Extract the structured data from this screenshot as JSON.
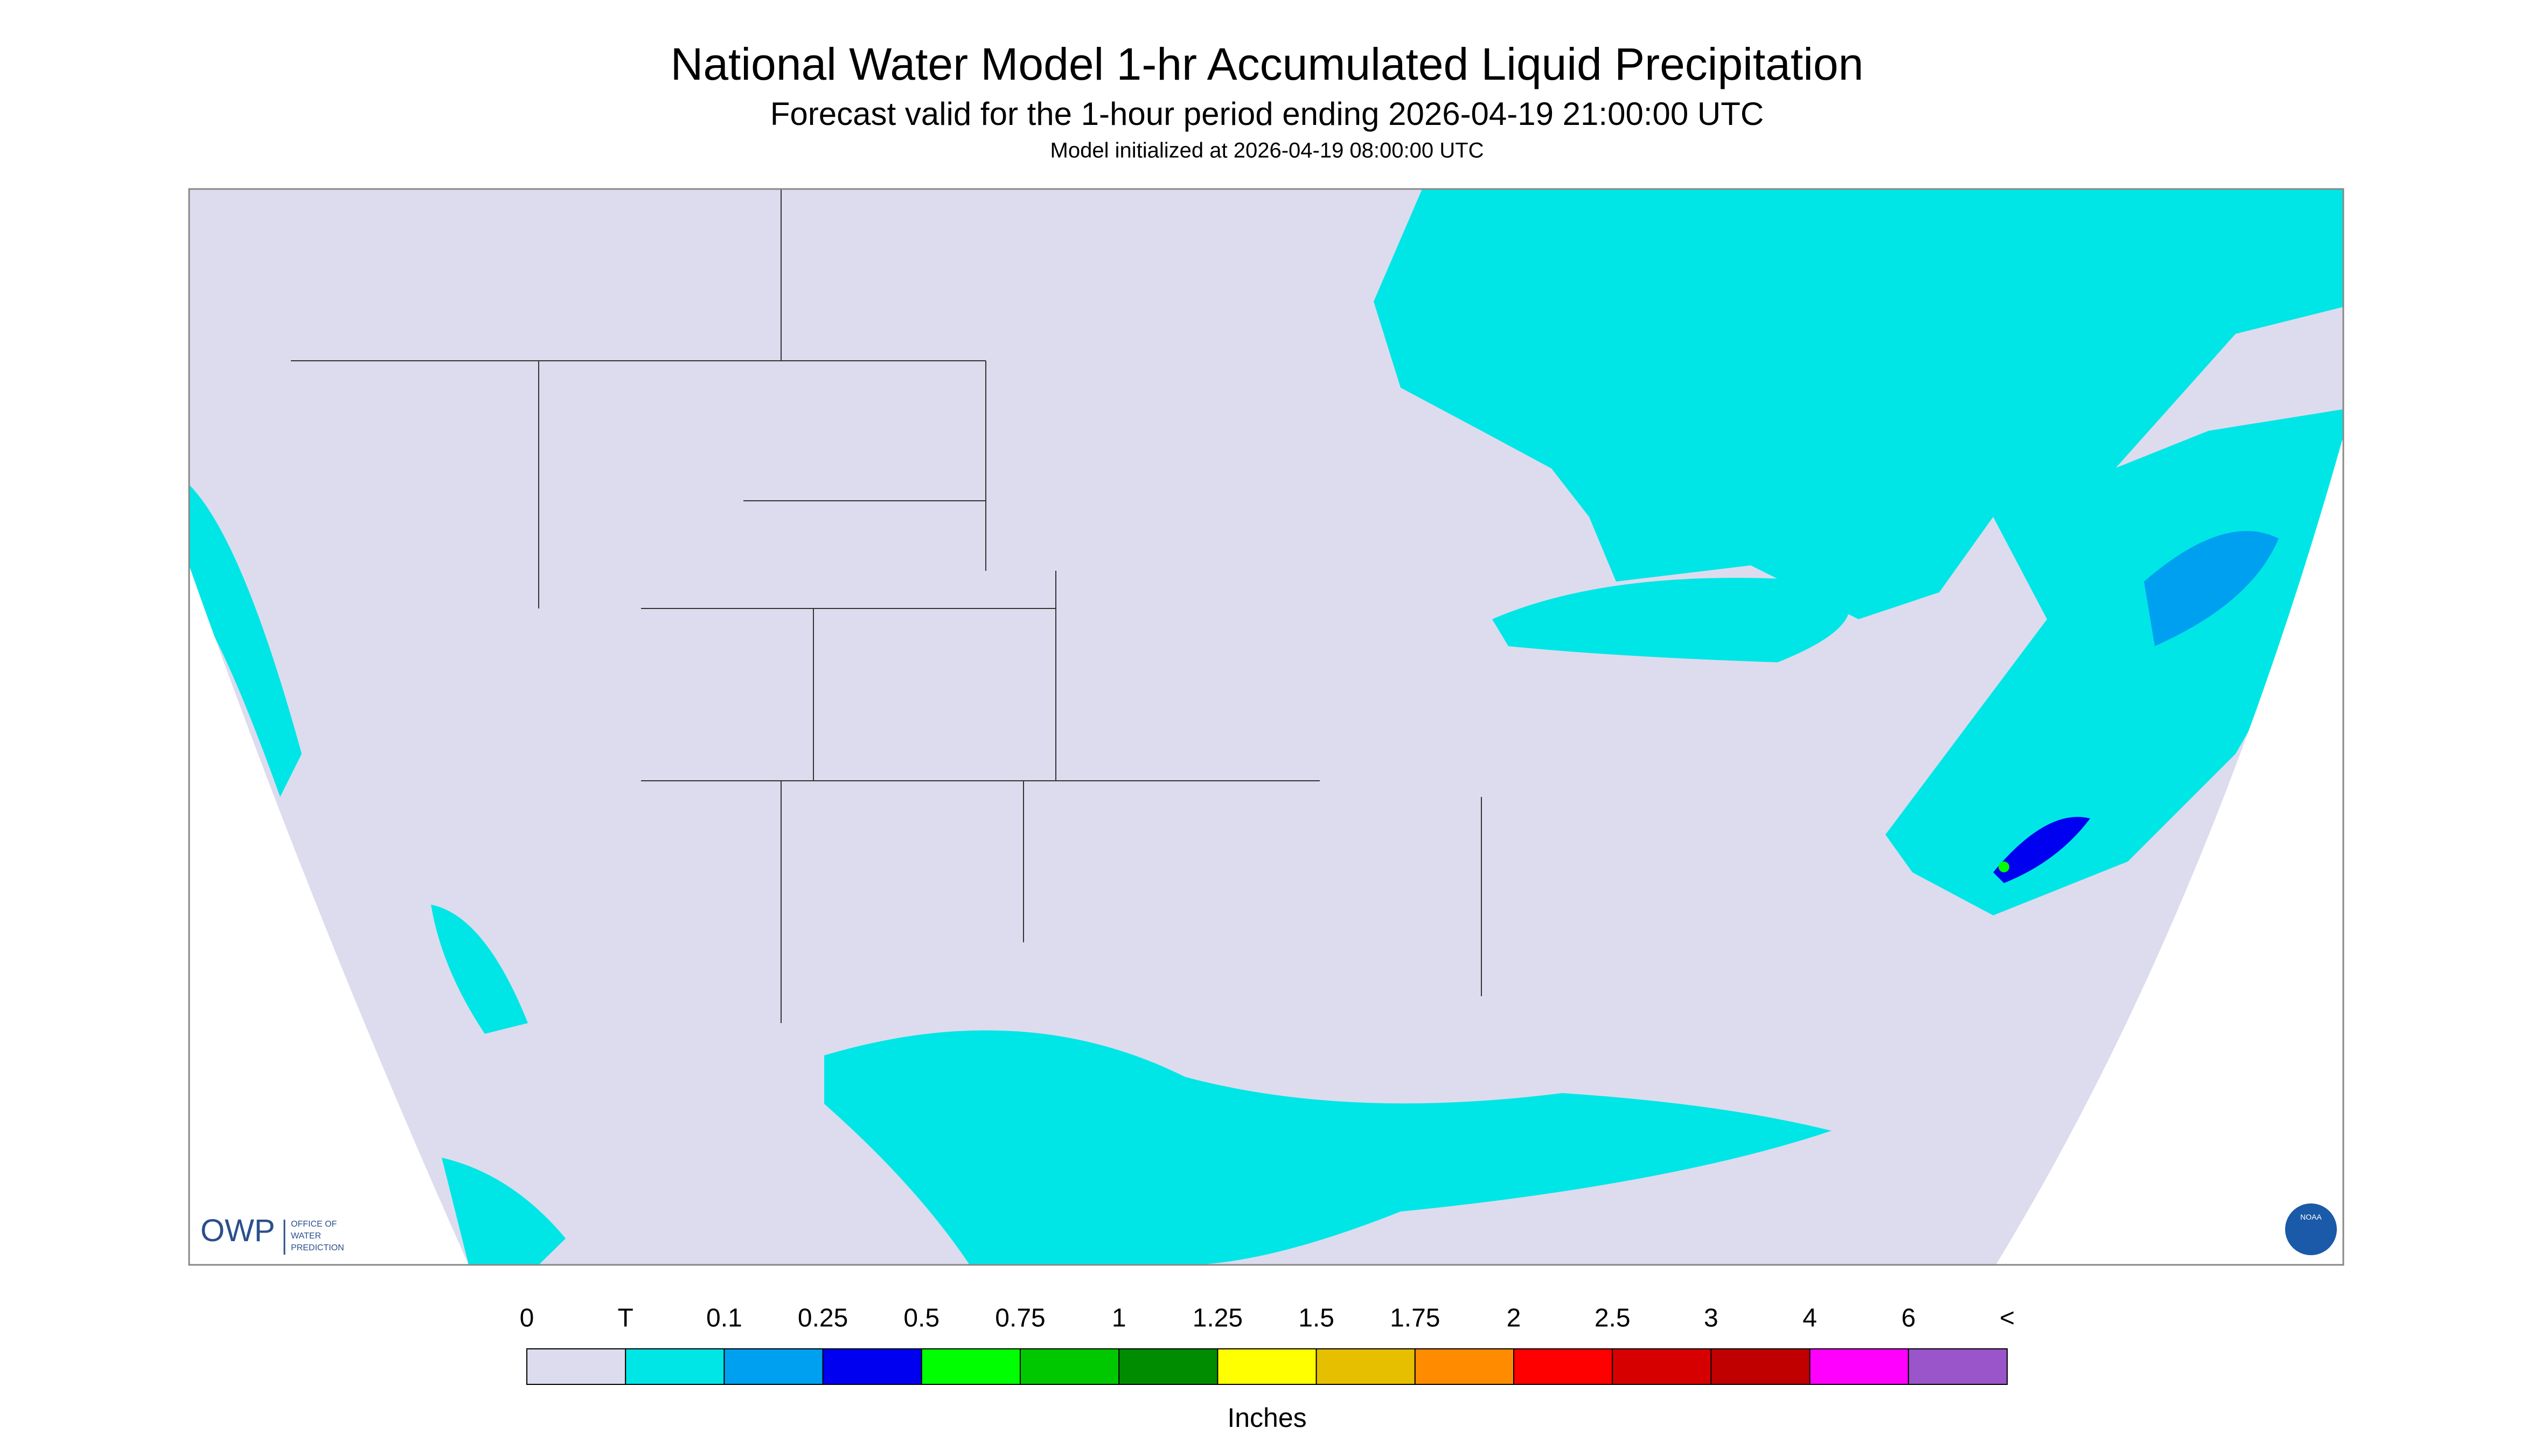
{
  "header": {
    "title": "National Water Model 1-hr Accumulated Liquid Precipitation",
    "subtitle": "Forecast valid for the 1-hour period ending 2026-04-19 21:00:00 UTC",
    "init": "Model initialized at 2026-04-19 08:00:00 UTC"
  },
  "logo": {
    "owp": "OWP",
    "office": [
      "OFFICE OF",
      "WATER",
      "PREDICTION"
    ],
    "noaa": "NOAA"
  },
  "legend": {
    "labels": [
      "0",
      "T",
      "0.1",
      "0.25",
      "0.5",
      "0.75",
      "1",
      "1.25",
      "1.5",
      "1.75",
      "2",
      "2.5",
      "3",
      "4",
      "6",
      "<"
    ],
    "colors": [
      "#dcdcee",
      "#00e6e6",
      "#00a0f0",
      "#0000f0",
      "#00ff00",
      "#00c800",
      "#008c00",
      "#ffff00",
      "#e6c000",
      "#ff8c00",
      "#ff0000",
      "#d70000",
      "#c00000",
      "#ff00ff",
      "#9955c9"
    ],
    "unit": "Inches"
  }
}
